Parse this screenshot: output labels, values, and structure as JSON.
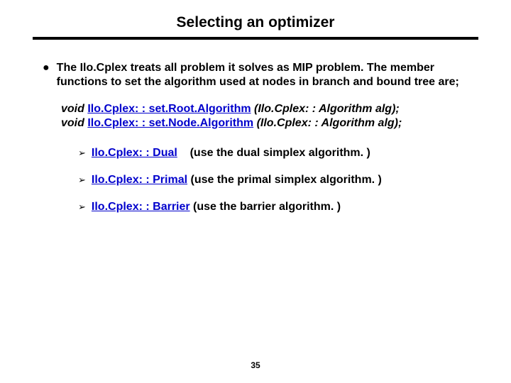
{
  "title": "Selecting an optimizer",
  "mainBullet": "The Ilo.Cplex treats all problem it solves as MIP problem. The member functions to set the algorithm used at nodes in branch and bound tree are;",
  "func1_prefix": "void ",
  "func1_link": "Ilo.Cplex: : set.Root.Algorithm",
  "func1_suffix": " (Ilo.Cplex: : Algorithm alg);",
  "func2_prefix": "void ",
  "func2_link": "Ilo.Cplex: : set.Node.Algorithm",
  "func2_suffix": " (Ilo.Cplex: : Algorithm alg);",
  "algos": [
    {
      "link": "Ilo.Cplex: : Dual",
      "gap": "   ",
      "desc": " (use the dual simplex algorithm. )"
    },
    {
      "link": "Ilo.Cplex: : Primal",
      "gap": "",
      "desc": " (use the primal simplex algorithm. )"
    },
    {
      "link": "Ilo.Cplex: : Barrier",
      "gap": "",
      "desc": " (use the barrier algorithm. )"
    }
  ],
  "pageNumber": "35",
  "markers": {
    "bullet": "●",
    "chevron": "➢"
  }
}
